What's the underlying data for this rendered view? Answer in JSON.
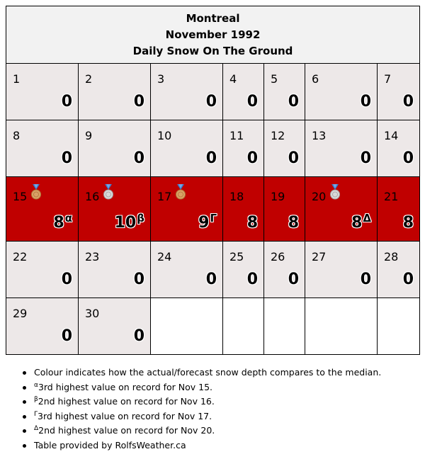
{
  "header": {
    "city": "Montreal",
    "period": "November 1992",
    "subject": "Daily Snow On The Ground"
  },
  "colors": {
    "normal_cell": "#ede8e8",
    "above_median_cell": "#c00000",
    "empty_cell": "#ffffff",
    "header_bg": "#f2f2f2"
  },
  "weeks": [
    {
      "days": [
        {
          "day": "1",
          "value": "0",
          "mark": ""
        },
        {
          "day": "2",
          "value": "0",
          "mark": ""
        },
        {
          "day": "3",
          "value": "0",
          "mark": ""
        },
        {
          "day": "4",
          "value": "0",
          "mark": ""
        },
        {
          "day": "5",
          "value": "0",
          "mark": ""
        },
        {
          "day": "6",
          "value": "0",
          "mark": ""
        },
        {
          "day": "7",
          "value": "0",
          "mark": ""
        }
      ]
    },
    {
      "days": [
        {
          "day": "8",
          "value": "0",
          "mark": ""
        },
        {
          "day": "9",
          "value": "0",
          "mark": ""
        },
        {
          "day": "10",
          "value": "0",
          "mark": ""
        },
        {
          "day": "11",
          "value": "0",
          "mark": ""
        },
        {
          "day": "12",
          "value": "0",
          "mark": ""
        },
        {
          "day": "13",
          "value": "0",
          "mark": ""
        },
        {
          "day": "14",
          "value": "0",
          "mark": ""
        }
      ]
    },
    {
      "days": [
        {
          "day": "15",
          "value": "8",
          "mark": "α",
          "medal": "bronze-medal-icon"
        },
        {
          "day": "16",
          "value": "10",
          "mark": "β",
          "medal": "silver-medal-icon"
        },
        {
          "day": "17",
          "value": "9",
          "mark": "Γ",
          "medal": "bronze-medal-icon"
        },
        {
          "day": "18",
          "value": "8",
          "mark": ""
        },
        {
          "day": "19",
          "value": "8",
          "mark": ""
        },
        {
          "day": "20",
          "value": "8",
          "mark": "Δ",
          "medal": "silver-medal-icon"
        },
        {
          "day": "21",
          "value": "8",
          "mark": ""
        }
      ]
    },
    {
      "days": [
        {
          "day": "22",
          "value": "0",
          "mark": ""
        },
        {
          "day": "23",
          "value": "0",
          "mark": ""
        },
        {
          "day": "24",
          "value": "0",
          "mark": ""
        },
        {
          "day": "25",
          "value": "0",
          "mark": ""
        },
        {
          "day": "26",
          "value": "0",
          "mark": ""
        },
        {
          "day": "27",
          "value": "0",
          "mark": ""
        },
        {
          "day": "28",
          "value": "0",
          "mark": ""
        }
      ]
    },
    {
      "days": [
        {
          "day": "29",
          "value": "0",
          "mark": ""
        },
        {
          "day": "30",
          "value": "0",
          "mark": ""
        }
      ]
    }
  ],
  "notes": [
    {
      "sup": "",
      "text": "Colour indicates how the actual/forecast snow depth compares to the median."
    },
    {
      "sup": "α",
      "text": "3rd highest value on record for Nov 15."
    },
    {
      "sup": "β",
      "text": "2nd highest value on record for Nov 16."
    },
    {
      "sup": "Γ",
      "text": "3rd highest value on record for Nov 17."
    },
    {
      "sup": "Δ",
      "text": "2nd highest value on record for Nov 20."
    },
    {
      "sup": "",
      "text": "Table provided by RolfsWeather.ca"
    }
  ]
}
